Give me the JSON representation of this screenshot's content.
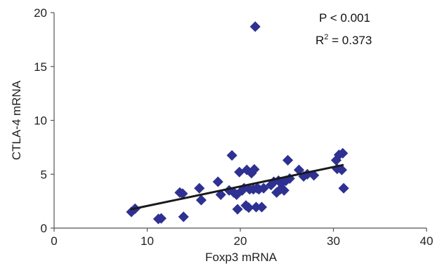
{
  "chart_data": {
    "type": "scatter",
    "xlabel": "Foxp3 mRNA",
    "ylabel": "CTLA-4 mRNA",
    "xlim": [
      0,
      40
    ],
    "ylim": [
      0,
      20
    ],
    "xticks": [
      "0",
      "10",
      "20",
      "30",
      "40"
    ],
    "yticks": [
      "0",
      "5",
      "10",
      "15",
      "20"
    ],
    "grid": false,
    "marker_color": "#2e3192",
    "trendline_color": "#1a1a1a",
    "annotations": {
      "p_value": "P < 0.001",
      "r2_prefix": "R",
      "r2_sup": "2",
      "r2_value": " = 0.373"
    },
    "trendline": {
      "x": [
        8.3,
        31.0
      ],
      "y": [
        1.75,
        5.85
      ]
    },
    "points": [
      {
        "x": 8.3,
        "y": 1.5
      },
      {
        "x": 8.7,
        "y": 1.8
      },
      {
        "x": 11.2,
        "y": 0.85
      },
      {
        "x": 11.5,
        "y": 0.9
      },
      {
        "x": 13.5,
        "y": 3.3
      },
      {
        "x": 13.8,
        "y": 3.2
      },
      {
        "x": 13.9,
        "y": 1.05
      },
      {
        "x": 15.6,
        "y": 3.7
      },
      {
        "x": 15.8,
        "y": 2.6
      },
      {
        "x": 17.6,
        "y": 4.3
      },
      {
        "x": 17.9,
        "y": 3.1
      },
      {
        "x": 18.8,
        "y": 3.5
      },
      {
        "x": 19.1,
        "y": 6.75
      },
      {
        "x": 19.3,
        "y": 3.3
      },
      {
        "x": 19.6,
        "y": 3.1
      },
      {
        "x": 19.7,
        "y": 1.75
      },
      {
        "x": 19.9,
        "y": 5.2
      },
      {
        "x": 20.2,
        "y": 3.5
      },
      {
        "x": 20.4,
        "y": 3.7
      },
      {
        "x": 20.6,
        "y": 2.1
      },
      {
        "x": 20.7,
        "y": 5.4
      },
      {
        "x": 20.9,
        "y": 1.9
      },
      {
        "x": 21.0,
        "y": 3.6
      },
      {
        "x": 21.2,
        "y": 5.1
      },
      {
        "x": 21.4,
        "y": 3.6
      },
      {
        "x": 21.5,
        "y": 5.45
      },
      {
        "x": 21.6,
        "y": 18.7
      },
      {
        "x": 21.7,
        "y": 1.95
      },
      {
        "x": 21.8,
        "y": 3.7
      },
      {
        "x": 22.0,
        "y": 3.6
      },
      {
        "x": 22.3,
        "y": 1.95
      },
      {
        "x": 22.5,
        "y": 3.7
      },
      {
        "x": 23.3,
        "y": 4.0
      },
      {
        "x": 23.6,
        "y": 4.3
      },
      {
        "x": 23.9,
        "y": 3.3
      },
      {
        "x": 24.1,
        "y": 4.4
      },
      {
        "x": 24.3,
        "y": 3.6
      },
      {
        "x": 24.5,
        "y": 4.2
      },
      {
        "x": 24.7,
        "y": 3.5
      },
      {
        "x": 24.9,
        "y": 4.4
      },
      {
        "x": 25.1,
        "y": 6.3
      },
      {
        "x": 25.3,
        "y": 4.6
      },
      {
        "x": 26.3,
        "y": 5.4
      },
      {
        "x": 26.8,
        "y": 4.8
      },
      {
        "x": 27.2,
        "y": 5.0
      },
      {
        "x": 27.9,
        "y": 4.9
      },
      {
        "x": 30.3,
        "y": 6.3
      },
      {
        "x": 30.4,
        "y": 5.5
      },
      {
        "x": 30.6,
        "y": 6.8
      },
      {
        "x": 30.9,
        "y": 5.4
      },
      {
        "x": 31.0,
        "y": 6.95
      },
      {
        "x": 31.1,
        "y": 3.7
      }
    ]
  }
}
